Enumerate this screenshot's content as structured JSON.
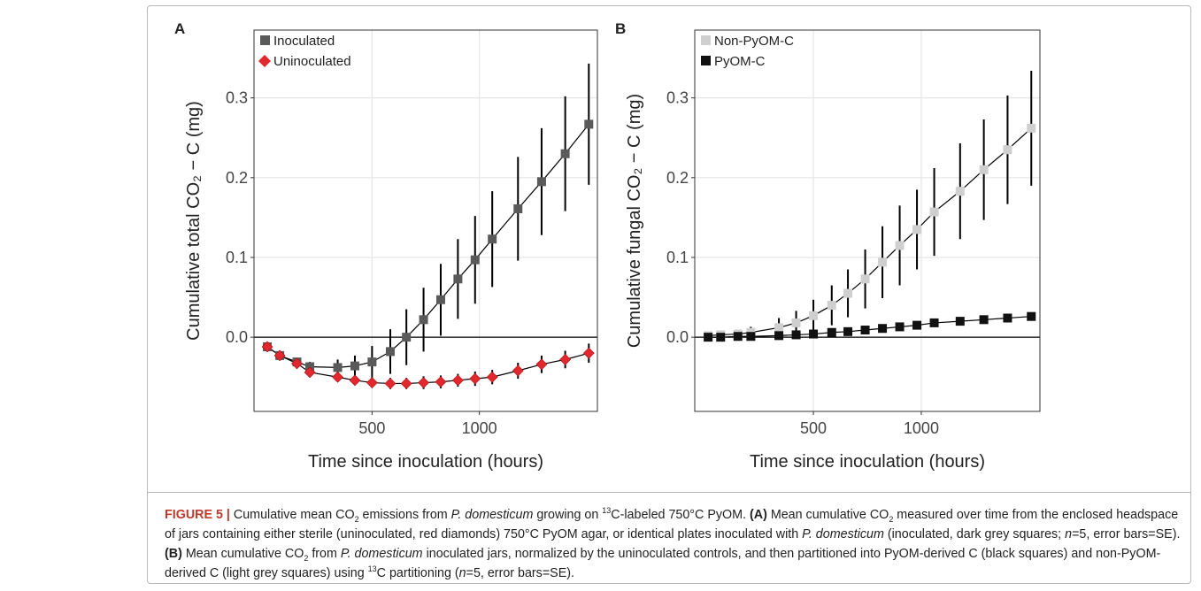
{
  "chart_data": [
    {
      "type": "scatter",
      "title": "A",
      "x_label": "Time since inoculation (hours)",
      "y_label": "Cumulative total CO₂ − C (mg)",
      "x": [
        12,
        70,
        150,
        210,
        340,
        420,
        500,
        585,
        660,
        740,
        820,
        900,
        980,
        1060,
        1180,
        1290,
        1400,
        1510
      ],
      "xlim": [
        -50,
        1550
      ],
      "xticks": [
        500,
        1000
      ],
      "ylim": [
        -0.093,
        0.385
      ],
      "yticks": [
        {
          "value": 0,
          "label": "0.0"
        },
        0.1,
        0.2,
        0.3
      ],
      "grid": true,
      "hline": 0,
      "legend": "upper left",
      "series": [
        {
          "name": "Inoculated",
          "color": "#5a5a5a",
          "marker": "square",
          "values": [
            -0.012,
            -0.023,
            -0.031,
            -0.037,
            -0.038,
            -0.036,
            -0.031,
            -0.018,
            0.0,
            0.022,
            0.047,
            0.073,
            0.097,
            0.123,
            0.161,
            0.195,
            0.23,
            0.267
          ],
          "errors": [
            0.003,
            0.004,
            0.005,
            0.006,
            0.01,
            0.013,
            0.02,
            0.028,
            0.035,
            0.04,
            0.045,
            0.05,
            0.055,
            0.06,
            0.065,
            0.067,
            0.072,
            0.076
          ]
        },
        {
          "name": "Uninoculated",
          "color": "#e0282e",
          "marker": "diamond",
          "values": [
            -0.012,
            -0.023,
            -0.033,
            -0.044,
            -0.05,
            -0.054,
            -0.057,
            -0.058,
            -0.058,
            -0.057,
            -0.056,
            -0.054,
            -0.052,
            -0.05,
            -0.042,
            -0.034,
            -0.028,
            -0.02
          ],
          "errors": [
            0.002,
            0.003,
            0.003,
            0.004,
            0.005,
            0.006,
            0.006,
            0.007,
            0.007,
            0.008,
            0.008,
            0.008,
            0.009,
            0.009,
            0.01,
            0.011,
            0.011,
            0.012
          ]
        }
      ]
    },
    {
      "type": "scatter",
      "title": "B",
      "x_label": "Time since inoculation (hours)",
      "y_label": "Cumulative fungal CO₂ − C (mg)",
      "x": [
        12,
        70,
        150,
        210,
        340,
        420,
        500,
        585,
        660,
        740,
        820,
        900,
        980,
        1060,
        1180,
        1290,
        1400,
        1510
      ],
      "xlim": [
        -50,
        1550
      ],
      "xticks": [
        500,
        1000
      ],
      "ylim": [
        -0.093,
        0.385
      ],
      "yticks": [
        {
          "value": 0,
          "label": "0.0"
        },
        0.1,
        0.2,
        0.3
      ],
      "grid": true,
      "hline": 0,
      "legend": "upper left",
      "series": [
        {
          "name": "Non-PyOM-C",
          "color": "#cfcfcf",
          "marker": "square",
          "values": [
            0.002,
            0.003,
            0.004,
            0.006,
            0.012,
            0.018,
            0.027,
            0.04,
            0.055,
            0.073,
            0.094,
            0.115,
            0.135,
            0.157,
            0.183,
            0.21,
            0.235,
            0.262
          ],
          "errors": [
            0.002,
            0.003,
            0.005,
            0.007,
            0.012,
            0.015,
            0.02,
            0.025,
            0.03,
            0.037,
            0.045,
            0.05,
            0.05,
            0.055,
            0.06,
            0.063,
            0.068,
            0.072
          ]
        },
        {
          "name": "PyOM-C",
          "color": "#111111",
          "marker": "square",
          "values": [
            0.0,
            0.0,
            0.001,
            0.001,
            0.002,
            0.003,
            0.004,
            0.006,
            0.007,
            0.009,
            0.011,
            0.013,
            0.015,
            0.018,
            0.02,
            0.022,
            0.024,
            0.026
          ],
          "errors": [
            0.001,
            0.001,
            0.001,
            0.001,
            0.001,
            0.001,
            0.001,
            0.002,
            0.002,
            0.002,
            0.002,
            0.002,
            0.002,
            0.002,
            0.003,
            0.003,
            0.003,
            0.003
          ]
        }
      ]
    }
  ],
  "caption": {
    "parts": [
      "FIGURE 5 |",
      " Cumulative mean CO",
      "2",
      " emissions from ",
      "P. domesticum",
      " growing on ",
      "13",
      "C-labeled 750°C PyOM. ",
      "(A)",
      " Mean cumulative CO",
      "2",
      " measured over time from the enclosed headspace of jars containing either sterile (uninoculated, red diamonds) 750°C PyOM agar, or identical plates inoculated with ",
      "P. domesticum",
      " (inoculated, dark grey squares; ",
      "n",
      "=5, error bars=SE). ",
      "(B)",
      " Mean cumulative CO",
      "2",
      " from ",
      "P. domesticum",
      " inoculated jars, normalized by the uninoculated controls, and then partitioned into PyOM-derived C (black squares) and non-PyOM-derived C (light grey squares) using ",
      "13",
      "C partitioning (",
      "n",
      "=5, error bars=SE)."
    ]
  }
}
